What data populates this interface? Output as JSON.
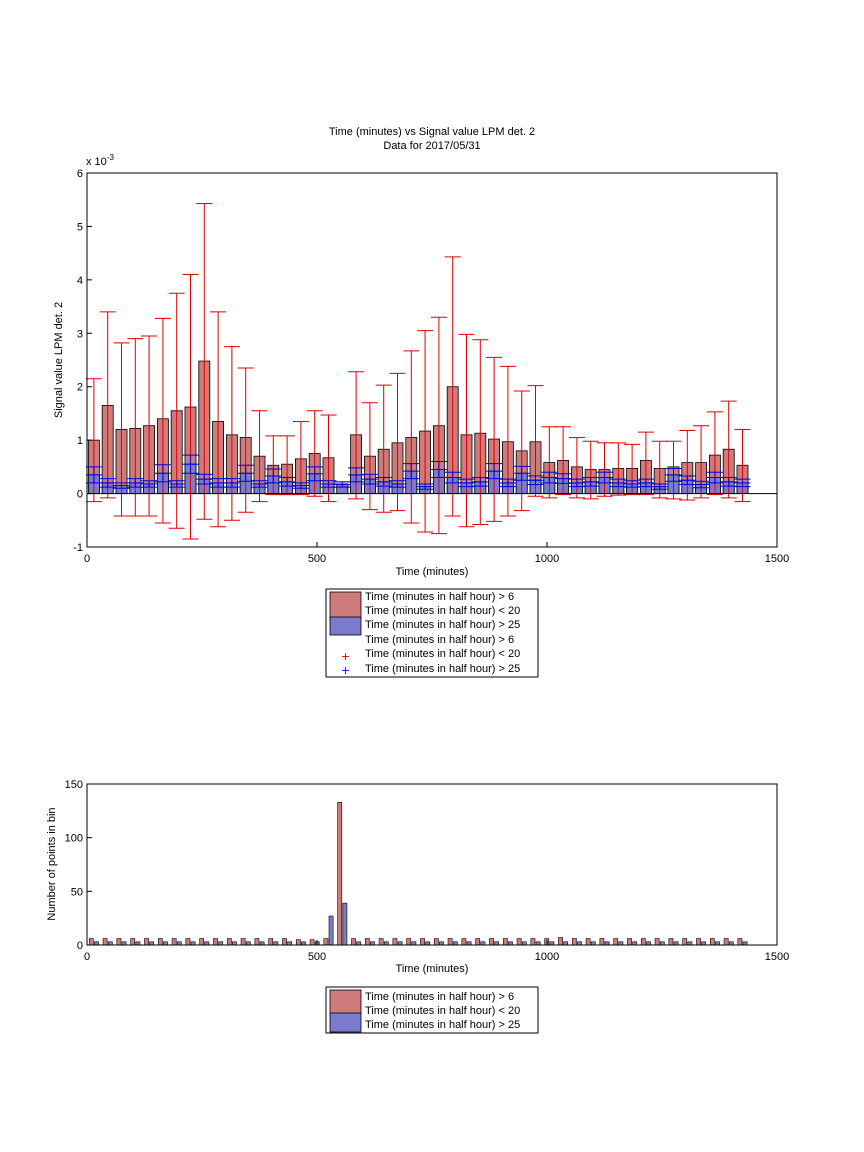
{
  "colors": {
    "red_bar": "#ce7b7b",
    "blue_bar": "#7b7bce",
    "red_err": "#dd0000",
    "blue_err": "#0000dd",
    "bar_edge": "#000000"
  },
  "chart_data": [
    {
      "type": "bar",
      "title": "Time (minutes) vs Signal value LPM det. 2",
      "subtitle": "Data for 2017/05/31",
      "xlabel": "Time (minutes)",
      "ylabel": "Signal value LPM det. 2",
      "y_exponent_label": "x 10",
      "y_exponent": "-3",
      "xlim": [
        0,
        1500
      ],
      "ylim": [
        -1,
        6
      ],
      "xticks": [
        "0",
        "500",
        "1000",
        "1500"
      ],
      "yticks": [
        "-1",
        "0",
        "1",
        "2",
        "3",
        "4",
        "5",
        "6"
      ],
      "grid": false,
      "legend_position": "below",
      "legend": [
        "Time (minutes in half hour) > 6",
        "Time (minutes in half hour) < 20",
        "Time (minutes in half hour) > 25",
        "Time (minutes in half hour) > 6",
        "Time (minutes in half hour) < 20",
        "Time (minutes in half hour) > 25"
      ],
      "x": [
        15,
        45,
        75,
        105,
        135,
        165,
        195,
        225,
        255,
        285,
        315,
        345,
        375,
        405,
        435,
        465,
        495,
        525,
        555,
        585,
        615,
        645,
        675,
        705,
        735,
        765,
        795,
        825,
        855,
        885,
        915,
        945,
        975,
        1005,
        1035,
        1065,
        1095,
        1125,
        1155,
        1185,
        1215,
        1245,
        1275,
        1305,
        1335,
        1365,
        1395,
        1425
      ],
      "series": [
        {
          "values": [
            1.0,
            1.65,
            1.2,
            1.22,
            1.27,
            1.4,
            1.55,
            1.62,
            2.48,
            1.35,
            1.1,
            1.05,
            0.7,
            0.53,
            0.55,
            0.65,
            0.75,
            0.67,
            0.18,
            1.1,
            0.7,
            0.83,
            0.95,
            1.05,
            1.17,
            1.27,
            2.0,
            1.1,
            1.13,
            1.02,
            0.97,
            0.8,
            0.97,
            0.58,
            0.62,
            0.5,
            0.45,
            0.45,
            0.47,
            0.47,
            0.62,
            0.47,
            0.5,
            0.58,
            0.58,
            0.72,
            0.83,
            0.53
          ],
          "err_low": [
            -0.15,
            -0.08,
            -0.42,
            -0.42,
            -0.42,
            -0.55,
            -0.65,
            -0.85,
            -0.48,
            -0.62,
            -0.5,
            -0.35,
            -0.15,
            -0.02,
            -0.02,
            -0.02,
            -0.05,
            -0.15,
            0.12,
            -0.1,
            -0.3,
            -0.35,
            -0.32,
            -0.55,
            -0.72,
            -0.75,
            -0.42,
            -0.62,
            -0.58,
            -0.52,
            -0.42,
            -0.32,
            -0.05,
            -0.08,
            -0.02,
            -0.08,
            -0.1,
            -0.05,
            -0.03,
            -0.02,
            -0.02,
            -0.08,
            -0.1,
            -0.12,
            -0.08,
            -0.02,
            -0.08,
            -0.15
          ],
          "err_high": [
            2.15,
            3.4,
            2.82,
            2.9,
            2.95,
            3.28,
            3.75,
            4.1,
            5.43,
            3.4,
            2.75,
            2.35,
            1.55,
            1.08,
            1.08,
            1.35,
            1.55,
            1.47,
            0.22,
            2.28,
            1.7,
            2.03,
            2.25,
            2.67,
            3.05,
            3.3,
            4.43,
            2.98,
            2.88,
            2.55,
            2.38,
            1.92,
            2.02,
            1.25,
            1.25,
            1.05,
            0.98,
            0.95,
            0.95,
            0.92,
            1.15,
            0.98,
            0.98,
            1.18,
            1.27,
            1.53,
            1.73,
            1.2
          ]
        },
        {
          "values": [
            0.35,
            0.2,
            0.15,
            0.2,
            0.18,
            0.38,
            0.18,
            0.55,
            0.27,
            0.2,
            0.2,
            0.38,
            0.18,
            0.33,
            0.22,
            0.15,
            0.37,
            0.18,
            0.17,
            0.35,
            0.27,
            0.22,
            0.18,
            0.42,
            0.13,
            0.45,
            0.3,
            0.2,
            0.22,
            0.42,
            0.2,
            0.38,
            0.25,
            0.3,
            0.28,
            0.2,
            0.22,
            0.3,
            0.2,
            0.18,
            0.2,
            0.13,
            0.35,
            0.25,
            0.17,
            0.3,
            0.22,
            0.2
          ],
          "err_low": [
            0.2,
            0.12,
            0.1,
            0.12,
            0.12,
            0.22,
            0.12,
            0.38,
            0.18,
            0.12,
            0.12,
            0.23,
            0.12,
            0.2,
            0.14,
            0.1,
            0.24,
            0.12,
            0.12,
            0.22,
            0.18,
            0.14,
            0.12,
            0.28,
            0.08,
            0.3,
            0.2,
            0.13,
            0.14,
            0.28,
            0.13,
            0.25,
            0.17,
            0.2,
            0.19,
            0.13,
            0.14,
            0.2,
            0.13,
            0.12,
            0.13,
            0.08,
            0.23,
            0.17,
            0.11,
            0.2,
            0.14,
            0.13
          ],
          "err_high": [
            0.5,
            0.28,
            0.2,
            0.28,
            0.24,
            0.54,
            0.24,
            0.72,
            0.36,
            0.28,
            0.28,
            0.53,
            0.24,
            0.46,
            0.3,
            0.2,
            0.5,
            0.24,
            0.22,
            0.48,
            0.36,
            0.3,
            0.24,
            0.56,
            0.18,
            0.6,
            0.4,
            0.27,
            0.3,
            0.56,
            0.27,
            0.51,
            0.33,
            0.4,
            0.37,
            0.27,
            0.3,
            0.4,
            0.27,
            0.24,
            0.27,
            0.18,
            0.47,
            0.33,
            0.23,
            0.4,
            0.3,
            0.27
          ]
        }
      ]
    },
    {
      "type": "bar",
      "xlabel": "Time (minutes)",
      "ylabel": "Number of points in bin",
      "xlim": [
        0,
        1500
      ],
      "ylim": [
        0,
        150
      ],
      "xticks": [
        "0",
        "500",
        "1000",
        "1500"
      ],
      "yticks": [
        "0",
        "50",
        "100",
        "150"
      ],
      "grid": false,
      "legend_position": "below",
      "legend": [
        "Time (minutes in half hour) > 6",
        "Time (minutes in half hour) < 20",
        "Time (minutes in half hour) > 25"
      ],
      "x": [
        15,
        45,
        75,
        105,
        135,
        165,
        195,
        225,
        255,
        285,
        315,
        345,
        375,
        405,
        435,
        465,
        495,
        525,
        555,
        585,
        615,
        645,
        675,
        705,
        735,
        765,
        795,
        825,
        855,
        885,
        915,
        945,
        975,
        1005,
        1035,
        1065,
        1095,
        1125,
        1155,
        1185,
        1215,
        1245,
        1275,
        1305,
        1335,
        1365,
        1395,
        1425
      ],
      "series": [
        {
          "values": [
            6,
            6,
            6,
            6,
            6,
            6,
            6,
            6,
            6,
            6,
            6,
            6,
            6,
            6,
            6,
            5,
            5,
            6,
            133,
            6,
            6,
            6,
            6,
            6,
            6,
            6,
            6,
            6,
            6,
            6,
            6,
            6,
            6,
            6,
            7,
            6,
            6,
            6,
            6,
            6,
            6,
            6,
            6,
            6,
            6,
            6,
            6,
            6
          ]
        },
        {
          "values": [
            3,
            3,
            3,
            3,
            3,
            3,
            3,
            3,
            3,
            3,
            3,
            3,
            3,
            3,
            3,
            3,
            3,
            27,
            39,
            3,
            3,
            3,
            3,
            3,
            3,
            3,
            3,
            3,
            3,
            3,
            3,
            3,
            3,
            3,
            3,
            3,
            3,
            3,
            3,
            3,
            3,
            3,
            3,
            3,
            3,
            3,
            3,
            3
          ]
        }
      ]
    }
  ]
}
